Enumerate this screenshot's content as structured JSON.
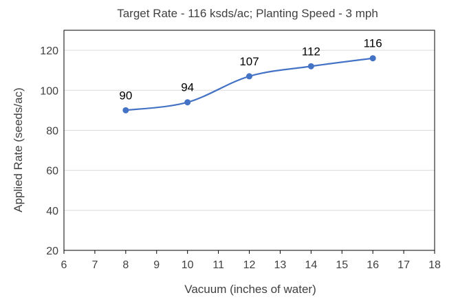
{
  "chart_data": {
    "type": "line",
    "title": "Target Rate - 116 ksds/ac; Planting Speed - 3 mph",
    "xlabel": "Vacuum (inches of water)",
    "ylabel": "Applied Rate (seeds/ac)",
    "xlim": [
      6,
      18
    ],
    "ylim": [
      20,
      130
    ],
    "xticks": [
      6,
      7,
      8,
      9,
      10,
      11,
      12,
      13,
      14,
      15,
      16,
      17,
      18
    ],
    "yticks": [
      20,
      40,
      60,
      80,
      100,
      120
    ],
    "grid": "horizontal",
    "legend": "none",
    "smoothed": true,
    "series": [
      {
        "x": [
          8,
          10,
          12,
          14,
          16
        ],
        "y": [
          90,
          94,
          107,
          112,
          116
        ],
        "data_labels": [
          "90",
          "94",
          "107",
          "112",
          "116"
        ],
        "color": "#4472C4"
      }
    ],
    "gridline_color": "#d9d9d9",
    "axis_color": "#000000"
  }
}
